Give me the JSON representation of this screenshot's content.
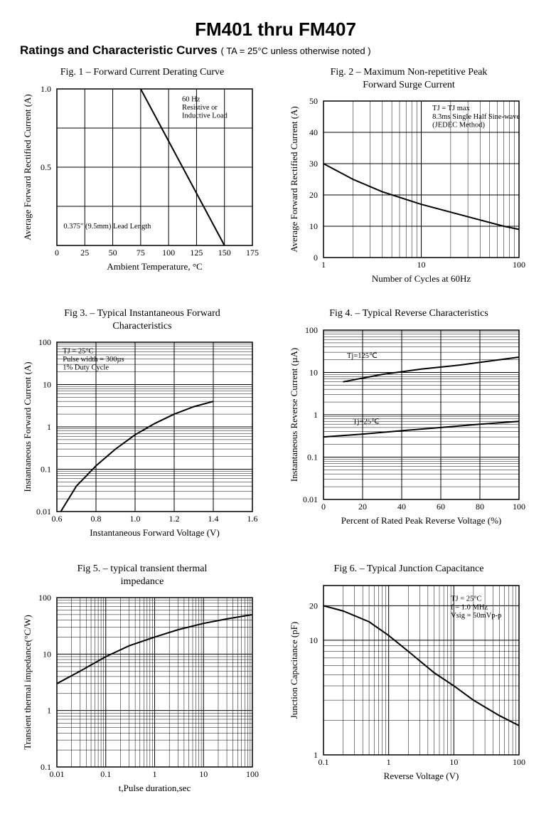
{
  "header": {
    "main_title": "FM401 thru FM407",
    "section_title": "Ratings and Characteristic Curves",
    "section_note": "( TA = 25°C unless otherwise noted )"
  },
  "figures": {
    "fig1": {
      "title": "Fig. 1  –  Forward Current Derating Curve",
      "xlabel": "Ambient Temperature, °C",
      "ylabel": "Average Forward Rectified Current (A)",
      "x_ticks": [
        0,
        25,
        50,
        75,
        100,
        125,
        150,
        175
      ],
      "y_ticks": [
        0,
        0.5,
        1.0
      ],
      "y_tick_labels": [
        "",
        "0.5",
        "1.0"
      ],
      "annotation1": "60 Hz\nResistive or\nInductive Load",
      "annotation2": "0.375\" (9.5mm) Lead Length",
      "curve": [
        [
          75,
          1.0
        ],
        [
          150,
          0
        ]
      ]
    },
    "fig2": {
      "title": "Fig. 2  –  Maximum Non-repetitive Peak\nForward Surge Current",
      "xlabel": "Number of Cycles at 60Hz",
      "ylabel": "Average Forward Rectified Current (A)",
      "x_decades": [
        1,
        10,
        100
      ],
      "y_ticks": [
        0,
        10,
        20,
        30,
        40,
        50
      ],
      "annotation": "TJ = TJ max\n8.3ms Single Half Sine-wave\n(JEDEC Method)",
      "curve": [
        [
          1,
          30
        ],
        [
          2,
          25
        ],
        [
          4,
          21
        ],
        [
          10,
          17
        ],
        [
          20,
          14.5
        ],
        [
          40,
          12
        ],
        [
          70,
          10
        ],
        [
          100,
          9
        ]
      ]
    },
    "fig3": {
      "title": "Fig 3.  –  Typical Instantaneous Forward\nCharacteristics",
      "xlabel": "Instantaneous Forward Voltage (V)",
      "ylabel": "Instantaneous Forward Current (A)",
      "x_ticks": [
        0.6,
        0.8,
        1.0,
        1.2,
        1.4,
        1.6
      ],
      "y_decades": [
        0.01,
        0.1,
        1.0,
        10,
        100
      ],
      "annotation": "TJ = 25°C\nPulse width = 300µs\n1% Duty Cycle",
      "curve": [
        [
          0.62,
          0.01
        ],
        [
          0.7,
          0.04
        ],
        [
          0.8,
          0.12
        ],
        [
          0.9,
          0.3
        ],
        [
          1.0,
          0.65
        ],
        [
          1.1,
          1.2
        ],
        [
          1.2,
          2.0
        ],
        [
          1.3,
          3.0
        ],
        [
          1.4,
          4.0
        ]
      ]
    },
    "fig4": {
      "title": "Fig 4.  –  Typical Reverse Characteristics",
      "xlabel": "Percent of Rated Peak Reverse Voltage (%)",
      "ylabel": "Instantaneous Reverse Current (µA)",
      "x_ticks": [
        0,
        20,
        40,
        60,
        80,
        100
      ],
      "y_decades": [
        0.01,
        0.1,
        1.0,
        10,
        100
      ],
      "curve_hot": {
        "label": "Tj=125℃",
        "data": [
          [
            10,
            6
          ],
          [
            30,
            9
          ],
          [
            50,
            12
          ],
          [
            70,
            15
          ],
          [
            90,
            20
          ],
          [
            100,
            23
          ]
        ]
      },
      "curve_cold": {
        "label": "Tj=25℃",
        "data": [
          [
            0,
            0.3
          ],
          [
            20,
            0.35
          ],
          [
            40,
            0.42
          ],
          [
            60,
            0.5
          ],
          [
            80,
            0.6
          ],
          [
            100,
            0.7
          ]
        ]
      }
    },
    "fig5": {
      "title": "Fig 5.  – typical transient thermal\nimpedance",
      "xlabel": "t,Pulse duration,sec",
      "ylabel": "Transient thermal impedance(°C/W)",
      "x_decades": [
        0.01,
        0.1,
        1.0,
        10,
        100
      ],
      "y_decades": [
        0.1,
        1.0,
        10,
        100
      ],
      "curve": [
        [
          0.01,
          3
        ],
        [
          0.03,
          5
        ],
        [
          0.1,
          9
        ],
        [
          0.3,
          14
        ],
        [
          1,
          20
        ],
        [
          3,
          27
        ],
        [
          10,
          35
        ],
        [
          30,
          42
        ],
        [
          100,
          50
        ]
      ]
    },
    "fig6": {
      "title": "Fig 6.  –  Typical Junction Capacitance",
      "xlabel": "Reverse Voltage (V)",
      "ylabel": "Junction Capacitance (pF)",
      "x_decades": [
        0.1,
        1,
        10,
        100
      ],
      "y_ticks_log": [
        1,
        10,
        20
      ],
      "y_minor_2to9": true,
      "annotation": "TJ = 25°C\nf = 1.0 MHz\nVsig = 50mVp-p",
      "curve": [
        [
          0.1,
          20
        ],
        [
          0.2,
          18
        ],
        [
          0.5,
          14.5
        ],
        [
          1,
          11
        ],
        [
          2,
          8
        ],
        [
          5,
          5.2
        ],
        [
          10,
          4
        ],
        [
          20,
          3
        ],
        [
          50,
          2.2
        ],
        [
          100,
          1.8
        ]
      ]
    }
  }
}
